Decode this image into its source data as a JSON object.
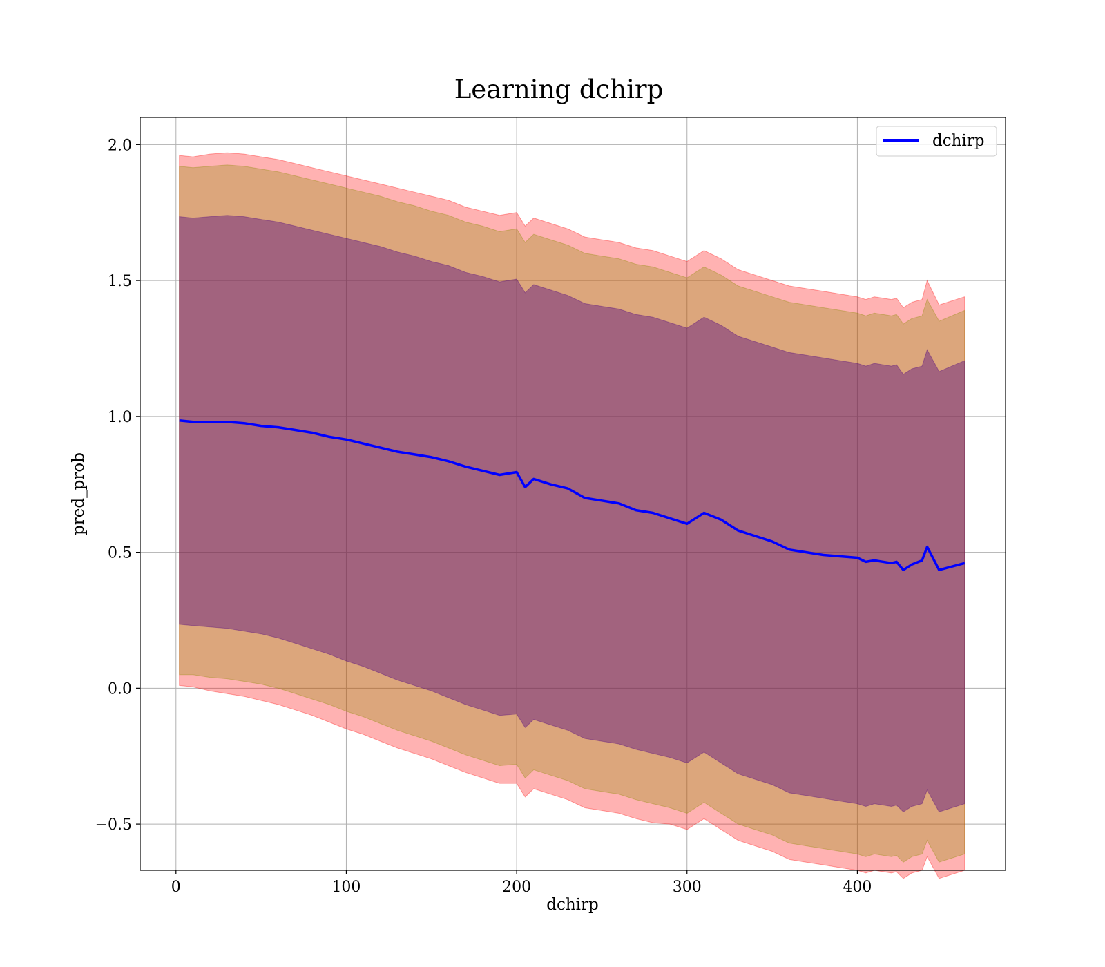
{
  "chart_data": {
    "type": "line",
    "title": "Learning dchirp",
    "xlabel": "dchirp",
    "ylabel": "pred_prob",
    "xlim": [
      -21,
      487
    ],
    "ylim": [
      -0.67,
      2.1
    ],
    "xticks": [
      0,
      100,
      200,
      300,
      400
    ],
    "yticks": [
      -0.5,
      0.0,
      0.5,
      1.0,
      1.5,
      2.0
    ],
    "xtick_labels": [
      "0",
      "100",
      "200",
      "300",
      "400"
    ],
    "ytick_labels": [
      "−0.5",
      "0.0",
      "0.5",
      "1.0",
      "1.5",
      "2.0"
    ],
    "grid": true,
    "legend": {
      "position": "top-right",
      "entries": [
        "dchirp"
      ]
    },
    "colors": {
      "line": "#0000ff",
      "band_outer": "#ff0000",
      "band_middle": "#8b8b00",
      "band_inner": "#4b0082"
    },
    "series": [
      {
        "name": "dchirp",
        "x": [
          2,
          10,
          20,
          30,
          40,
          50,
          60,
          70,
          80,
          90,
          100,
          110,
          120,
          130,
          140,
          150,
          160,
          170,
          180,
          190,
          200,
          205,
          210,
          220,
          230,
          240,
          250,
          260,
          270,
          280,
          290,
          300,
          310,
          320,
          330,
          340,
          350,
          360,
          370,
          380,
          390,
          400,
          405,
          410,
          420,
          423,
          427,
          432,
          438,
          441,
          448,
          463
        ],
        "y": [
          0.985,
          0.98,
          0.98,
          0.98,
          0.975,
          0.965,
          0.96,
          0.95,
          0.94,
          0.925,
          0.915,
          0.9,
          0.885,
          0.87,
          0.86,
          0.85,
          0.835,
          0.815,
          0.8,
          0.785,
          0.795,
          0.74,
          0.77,
          0.75,
          0.735,
          0.7,
          0.69,
          0.68,
          0.655,
          0.645,
          0.625,
          0.605,
          0.645,
          0.62,
          0.58,
          0.56,
          0.54,
          0.51,
          0.5,
          0.49,
          0.485,
          0.48,
          0.465,
          0.47,
          0.46,
          0.465,
          0.435,
          0.455,
          0.47,
          0.52,
          0.435,
          0.46
        ]
      }
    ],
    "bands": [
      {
        "level": "outer",
        "lower": [
          0.01,
          0.005,
          -0.01,
          -0.02,
          -0.03,
          -0.045,
          -0.06,
          -0.08,
          -0.1,
          -0.125,
          -0.15,
          -0.17,
          -0.195,
          -0.22,
          -0.24,
          -0.26,
          -0.285,
          -0.31,
          -0.33,
          -0.35,
          -0.35,
          -0.4,
          -0.37,
          -0.39,
          -0.41,
          -0.44,
          -0.45,
          -0.46,
          -0.48,
          -0.495,
          -0.5,
          -0.52,
          -0.48,
          -0.52,
          -0.56,
          -0.58,
          -0.6,
          -0.63,
          -0.64,
          -0.65,
          -0.66,
          -0.67,
          -0.68,
          -0.67,
          -0.68,
          -0.675,
          -0.7,
          -0.68,
          -0.67,
          -0.62,
          -0.7,
          -0.67
        ],
        "upper": [
          1.96,
          1.955,
          1.965,
          1.97,
          1.965,
          1.955,
          1.945,
          1.93,
          1.915,
          1.9,
          1.885,
          1.87,
          1.855,
          1.84,
          1.825,
          1.81,
          1.795,
          1.77,
          1.755,
          1.74,
          1.75,
          1.7,
          1.73,
          1.71,
          1.69,
          1.66,
          1.65,
          1.64,
          1.62,
          1.61,
          1.59,
          1.57,
          1.61,
          1.58,
          1.54,
          1.52,
          1.5,
          1.48,
          1.47,
          1.46,
          1.45,
          1.44,
          1.43,
          1.44,
          1.43,
          1.435,
          1.4,
          1.42,
          1.43,
          1.5,
          1.41,
          1.44
        ]
      },
      {
        "level": "middle",
        "lower": [
          0.05,
          0.05,
          0.04,
          0.035,
          0.025,
          0.015,
          0.0,
          -0.02,
          -0.04,
          -0.06,
          -0.085,
          -0.105,
          -0.13,
          -0.155,
          -0.175,
          -0.195,
          -0.22,
          -0.245,
          -0.265,
          -0.285,
          -0.28,
          -0.33,
          -0.3,
          -0.32,
          -0.34,
          -0.37,
          -0.38,
          -0.39,
          -0.41,
          -0.425,
          -0.44,
          -0.46,
          -0.42,
          -0.46,
          -0.5,
          -0.52,
          -0.54,
          -0.57,
          -0.58,
          -0.59,
          -0.6,
          -0.61,
          -0.62,
          -0.61,
          -0.62,
          -0.615,
          -0.64,
          -0.62,
          -0.61,
          -0.56,
          -0.64,
          -0.61
        ],
        "upper": [
          1.92,
          1.915,
          1.92,
          1.925,
          1.92,
          1.91,
          1.9,
          1.885,
          1.87,
          1.855,
          1.84,
          1.825,
          1.81,
          1.79,
          1.775,
          1.755,
          1.74,
          1.715,
          1.7,
          1.68,
          1.69,
          1.64,
          1.67,
          1.65,
          1.63,
          1.6,
          1.59,
          1.58,
          1.56,
          1.55,
          1.53,
          1.51,
          1.55,
          1.52,
          1.48,
          1.46,
          1.44,
          1.42,
          1.41,
          1.4,
          1.39,
          1.38,
          1.37,
          1.38,
          1.37,
          1.375,
          1.34,
          1.36,
          1.37,
          1.43,
          1.35,
          1.39
        ]
      },
      {
        "level": "inner",
        "lower": [
          0.235,
          0.23,
          0.225,
          0.22,
          0.21,
          0.2,
          0.185,
          0.165,
          0.145,
          0.125,
          0.1,
          0.08,
          0.055,
          0.03,
          0.01,
          -0.01,
          -0.035,
          -0.06,
          -0.08,
          -0.1,
          -0.095,
          -0.145,
          -0.115,
          -0.135,
          -0.155,
          -0.185,
          -0.195,
          -0.205,
          -0.225,
          -0.24,
          -0.255,
          -0.275,
          -0.235,
          -0.275,
          -0.315,
          -0.335,
          -0.355,
          -0.385,
          -0.395,
          -0.405,
          -0.415,
          -0.425,
          -0.435,
          -0.425,
          -0.435,
          -0.43,
          -0.455,
          -0.435,
          -0.425,
          -0.375,
          -0.455,
          -0.425
        ],
        "upper": [
          1.735,
          1.73,
          1.735,
          1.74,
          1.735,
          1.725,
          1.715,
          1.7,
          1.685,
          1.67,
          1.655,
          1.64,
          1.625,
          1.605,
          1.59,
          1.57,
          1.555,
          1.53,
          1.515,
          1.495,
          1.505,
          1.455,
          1.485,
          1.465,
          1.445,
          1.415,
          1.405,
          1.395,
          1.375,
          1.365,
          1.345,
          1.325,
          1.365,
          1.335,
          1.295,
          1.275,
          1.255,
          1.235,
          1.225,
          1.215,
          1.205,
          1.195,
          1.185,
          1.195,
          1.185,
          1.19,
          1.155,
          1.175,
          1.185,
          1.245,
          1.165,
          1.205
        ]
      }
    ]
  }
}
